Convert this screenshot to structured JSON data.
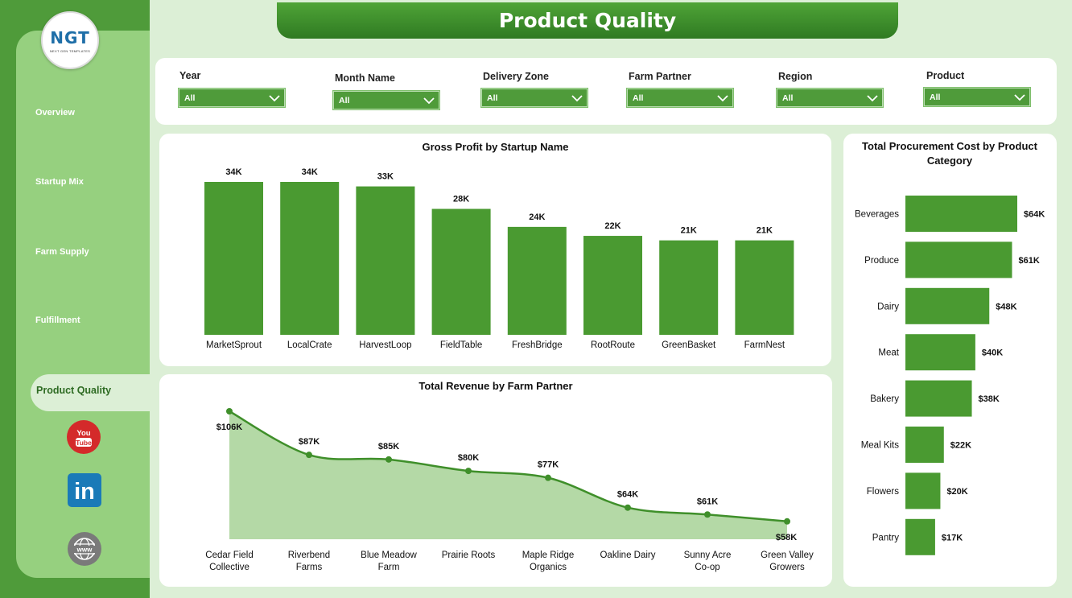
{
  "header": {
    "title": "Product Quality"
  },
  "logo": {
    "letters": "NGT",
    "tagline": "NEXT GEN TEMPLATES"
  },
  "sidebar": {
    "items": [
      {
        "label": "Overview"
      },
      {
        "label": "Startup Mix"
      },
      {
        "label": "Farm Supply"
      },
      {
        "label": "Fulfillment"
      },
      {
        "label": "Product Quality",
        "active": true
      }
    ],
    "social": [
      {
        "icon": "youtube-icon",
        "text": "You Tube"
      },
      {
        "icon": "linkedin-icon",
        "text": "in"
      },
      {
        "icon": "web-icon",
        "text": "www"
      }
    ]
  },
  "filters": [
    {
      "label": "Year",
      "value": "All"
    },
    {
      "label": "Month Name",
      "value": "All"
    },
    {
      "label": "Delivery Zone",
      "value": "All"
    },
    {
      "label": "Farm Partner",
      "value": "All"
    },
    {
      "label": "Region",
      "value": "All"
    },
    {
      "label": "Product",
      "value": "All"
    }
  ],
  "colors": {
    "bar": "#4a9a31",
    "area_fill": "#b4d9a6",
    "line": "#3f8f2a",
    "sidebar_dark": "#4f9b3a",
    "sidebar_light": "#96d07f",
    "background": "#dcefd6"
  },
  "chart_data": [
    {
      "type": "bar",
      "title": "Gross Profit by Startup Name",
      "categories": [
        "MarketSprout",
        "LocalCrate",
        "HarvestLoop",
        "FieldTable",
        "FreshBridge",
        "RootRoute",
        "GreenBasket",
        "FarmNest"
      ],
      "values": [
        34,
        34,
        33,
        28,
        24,
        22,
        21,
        21
      ],
      "data_labels": [
        "34K",
        "34K",
        "33K",
        "28K",
        "24K",
        "22K",
        "21K",
        "21K"
      ],
      "unit": "K"
    },
    {
      "type": "area",
      "title": "Total Revenue by Farm Partner",
      "categories": [
        "Cedar Field Collective",
        "Riverbend Farms",
        "Blue Meadow Farm",
        "Prairie Roots",
        "Maple Ridge Organics",
        "Oakline Dairy",
        "Sunny Acre Co-op",
        "Green Valley Growers"
      ],
      "category_lines": [
        [
          "Cedar Field",
          "Collective"
        ],
        [
          "Riverbend",
          "Farms"
        ],
        [
          "Blue Meadow",
          "Farm"
        ],
        [
          "Prairie Roots"
        ],
        [
          "Maple Ridge",
          "Organics"
        ],
        [
          "Oakline Dairy"
        ],
        [
          "Sunny Acre",
          "Co-op"
        ],
        [
          "Green Valley",
          "Growers"
        ]
      ],
      "values": [
        106,
        87,
        85,
        80,
        77,
        64,
        61,
        58
      ],
      "data_labels": [
        "$106K",
        "$87K",
        "$85K",
        "$80K",
        "$77K",
        "$64K",
        "$61K",
        "$58K"
      ],
      "unit": "$K"
    },
    {
      "type": "bar",
      "orientation": "horizontal",
      "title": "Total Procurement Cost by Product Category",
      "title_lines": [
        "Total Procurement Cost by Product",
        "Category"
      ],
      "categories": [
        "Beverages",
        "Produce",
        "Dairy",
        "Meat",
        "Bakery",
        "Meal Kits",
        "Flowers",
        "Pantry"
      ],
      "values": [
        64,
        61,
        48,
        40,
        38,
        22,
        20,
        17
      ],
      "data_labels": [
        "$64K",
        "$61K",
        "$48K",
        "$40K",
        "$38K",
        "$22K",
        "$20K",
        "$17K"
      ],
      "unit": "$K"
    }
  ]
}
